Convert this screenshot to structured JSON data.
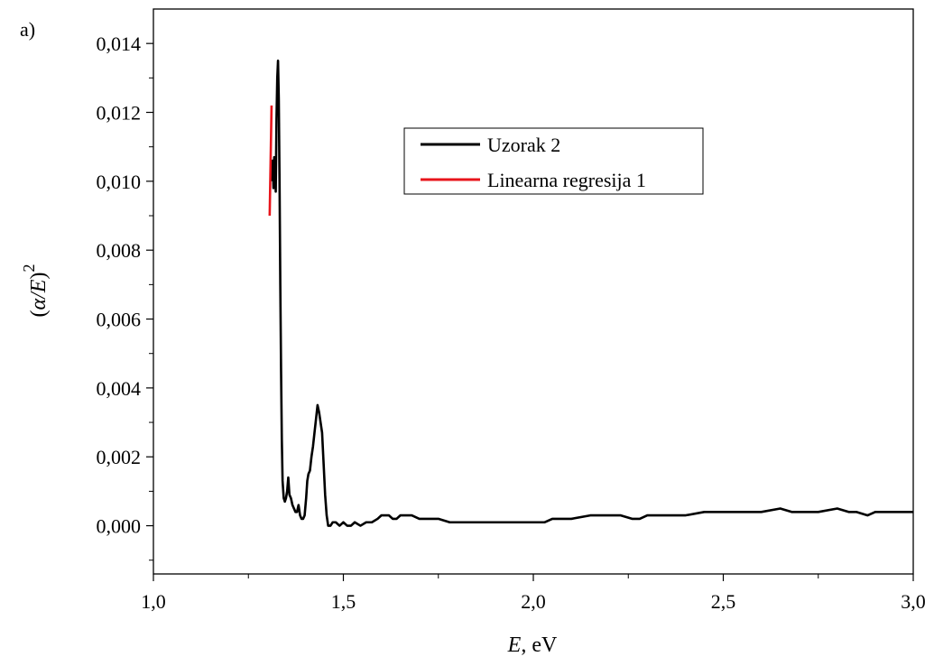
{
  "panel_label": "a)",
  "legend": {
    "items": [
      {
        "label": "Uzorak 2",
        "color": "#000000"
      },
      {
        "label": "Linearna regresija 1",
        "color": "#e8141b"
      }
    ]
  },
  "chart_data": {
    "type": "line",
    "title": "",
    "xlabel_main": "E",
    "xlabel_unit": ", eV",
    "ylabel_inner": "α/E",
    "ylabel_exp": "2",
    "xlim": [
      1.0,
      3.0
    ],
    "ylim": [
      -0.0014,
      0.015
    ],
    "xticks": [
      1.0,
      1.5,
      2.0,
      2.5,
      3.0
    ],
    "xtick_labels": [
      "1,0",
      "1,5",
      "2,0",
      "2,5",
      "3,0"
    ],
    "yticks": [
      0.0,
      0.002,
      0.004,
      0.006,
      0.008,
      0.01,
      0.012,
      0.014
    ],
    "ytick_labels": [
      "0,000",
      "0,002",
      "0,004",
      "0,006",
      "0,008",
      "0,010",
      "0,012",
      "0,014"
    ],
    "grid": false,
    "legend_position": "top-center",
    "series": [
      {
        "name": "Uzorak 2",
        "color": "#000000",
        "points": [
          [
            1.312,
            0.01
          ],
          [
            1.314,
            0.0106
          ],
          [
            1.316,
            0.0098
          ],
          [
            1.318,
            0.0107
          ],
          [
            1.32,
            0.0104
          ],
          [
            1.322,
            0.0097
          ],
          [
            1.324,
            0.0118
          ],
          [
            1.326,
            0.013
          ],
          [
            1.328,
            0.0135
          ],
          [
            1.33,
            0.0124
          ],
          [
            1.332,
            0.01
          ],
          [
            1.334,
            0.007
          ],
          [
            1.336,
            0.0045
          ],
          [
            1.338,
            0.0025
          ],
          [
            1.34,
            0.0013
          ],
          [
            1.343,
            0.0008
          ],
          [
            1.346,
            0.0007
          ],
          [
            1.349,
            0.0008
          ],
          [
            1.352,
            0.001
          ],
          [
            1.355,
            0.0014
          ],
          [
            1.358,
            0.0009
          ],
          [
            1.362,
            0.0008
          ],
          [
            1.366,
            0.0006
          ],
          [
            1.37,
            0.0005
          ],
          [
            1.374,
            0.0004
          ],
          [
            1.378,
            0.0004
          ],
          [
            1.382,
            0.0006
          ],
          [
            1.386,
            0.0003
          ],
          [
            1.39,
            0.0002
          ],
          [
            1.394,
            0.0002
          ],
          [
            1.398,
            0.0003
          ],
          [
            1.402,
            0.0008
          ],
          [
            1.405,
            0.0013
          ],
          [
            1.408,
            0.0015
          ],
          [
            1.412,
            0.0016
          ],
          [
            1.416,
            0.002
          ],
          [
            1.42,
            0.0023
          ],
          [
            1.424,
            0.0027
          ],
          [
            1.428,
            0.0031
          ],
          [
            1.432,
            0.0035
          ],
          [
            1.436,
            0.0033
          ],
          [
            1.44,
            0.003
          ],
          [
            1.444,
            0.0027
          ],
          [
            1.448,
            0.0018
          ],
          [
            1.452,
            0.0009
          ],
          [
            1.456,
            0.0003
          ],
          [
            1.46,
            0.0
          ],
          [
            1.466,
            0.0
          ],
          [
            1.472,
            0.0001
          ],
          [
            1.48,
            0.0001
          ],
          [
            1.49,
            0.0
          ],
          [
            1.5,
            0.0001
          ],
          [
            1.51,
            0.0
          ],
          [
            1.52,
            0.0
          ],
          [
            1.53,
            0.0001
          ],
          [
            1.545,
            0.0
          ],
          [
            1.56,
            0.0001
          ],
          [
            1.575,
            0.0001
          ],
          [
            1.59,
            0.0002
          ],
          [
            1.6,
            0.0003
          ],
          [
            1.61,
            0.0003
          ],
          [
            1.62,
            0.0003
          ],
          [
            1.63,
            0.0002
          ],
          [
            1.64,
            0.0002
          ],
          [
            1.65,
            0.0003
          ],
          [
            1.66,
            0.0003
          ],
          [
            1.67,
            0.0003
          ],
          [
            1.68,
            0.0003
          ],
          [
            1.7,
            0.0002
          ],
          [
            1.72,
            0.0002
          ],
          [
            1.75,
            0.0002
          ],
          [
            1.78,
            0.0001
          ],
          [
            1.8,
            0.0001
          ],
          [
            1.85,
            0.0001
          ],
          [
            1.9,
            0.0001
          ],
          [
            1.95,
            0.0001
          ],
          [
            1.98,
            0.0001
          ],
          [
            2.0,
            0.0001
          ],
          [
            2.03,
            0.0001
          ],
          [
            2.05,
            0.0002
          ],
          [
            2.08,
            0.0002
          ],
          [
            2.1,
            0.0002
          ],
          [
            2.15,
            0.0003
          ],
          [
            2.2,
            0.0003
          ],
          [
            2.23,
            0.0003
          ],
          [
            2.26,
            0.0002
          ],
          [
            2.28,
            0.0002
          ],
          [
            2.3,
            0.0003
          ],
          [
            2.35,
            0.0003
          ],
          [
            2.4,
            0.0003
          ],
          [
            2.45,
            0.0004
          ],
          [
            2.5,
            0.0004
          ],
          [
            2.55,
            0.0004
          ],
          [
            2.6,
            0.0004
          ],
          [
            2.65,
            0.0005
          ],
          [
            2.68,
            0.0004
          ],
          [
            2.7,
            0.0004
          ],
          [
            2.75,
            0.0004
          ],
          [
            2.8,
            0.0005
          ],
          [
            2.83,
            0.0004
          ],
          [
            2.85,
            0.0004
          ],
          [
            2.88,
            0.0003
          ],
          [
            2.9,
            0.0004
          ],
          [
            2.95,
            0.0004
          ],
          [
            3.0,
            0.0004
          ]
        ]
      },
      {
        "name": "Linearna regresija 1",
        "color": "#e8141b",
        "points": [
          [
            1.306,
            0.009
          ],
          [
            1.311,
            0.0122
          ]
        ]
      }
    ]
  }
}
